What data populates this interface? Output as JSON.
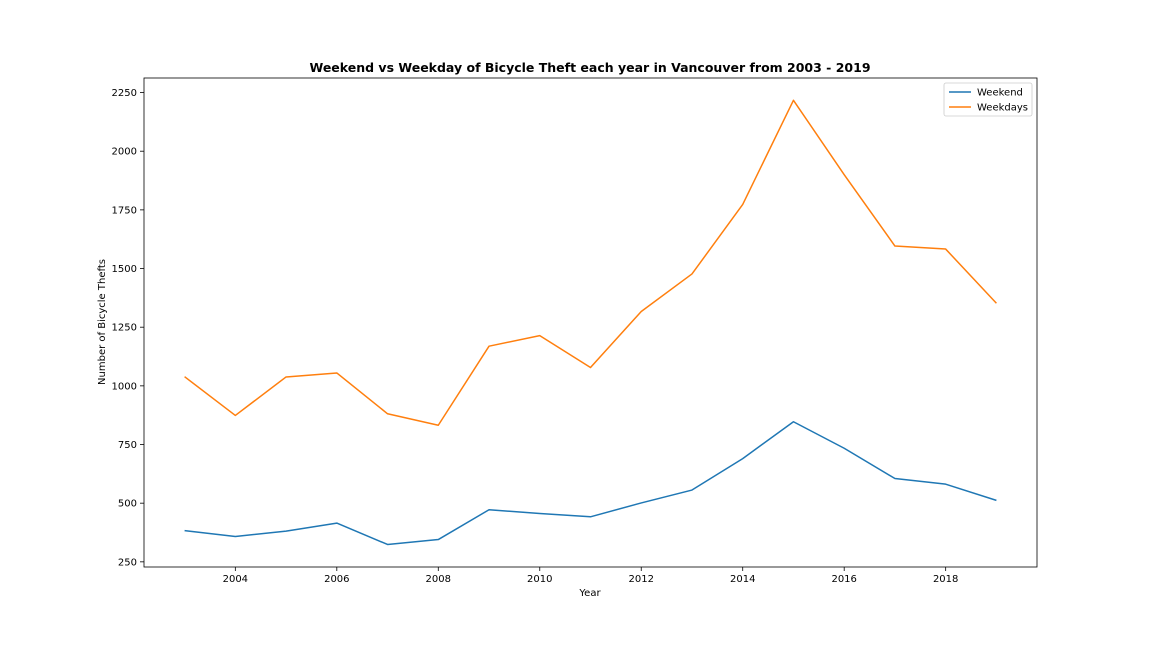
{
  "chart_data": {
    "type": "line",
    "title": "Weekend vs Weekday of Bicycle Theft each year in Vancouver from 2003 - 2019",
    "xlabel": "Year",
    "ylabel": "Number of Bicycle Thefts",
    "x": [
      2003,
      2004,
      2005,
      2006,
      2007,
      2008,
      2009,
      2010,
      2011,
      2012,
      2013,
      2014,
      2015,
      2016,
      2017,
      2018,
      2019
    ],
    "xlim": [
      2002.2,
      2019.8
    ],
    "ylim": [
      228,
      2312
    ],
    "xticks": [
      2004,
      2006,
      2008,
      2010,
      2012,
      2014,
      2016,
      2018
    ],
    "yticks": [
      250,
      500,
      750,
      1000,
      1250,
      1500,
      1750,
      2000,
      2250
    ],
    "grid": false,
    "legend_position": "top-right",
    "series": [
      {
        "name": "Weekend",
        "color": "#1f77b4",
        "values": [
          383,
          358,
          381,
          415,
          324,
          345,
          472,
          456,
          442,
          501,
          556,
          690,
          847,
          734,
          605,
          581,
          512
        ]
      },
      {
        "name": "Weekdays",
        "color": "#ff7f0e",
        "values": [
          1039,
          874,
          1038,
          1055,
          881,
          832,
          1169,
          1214,
          1078,
          1317,
          1477,
          1773,
          2217,
          1900,
          1596,
          1583,
          1352
        ]
      }
    ]
  }
}
